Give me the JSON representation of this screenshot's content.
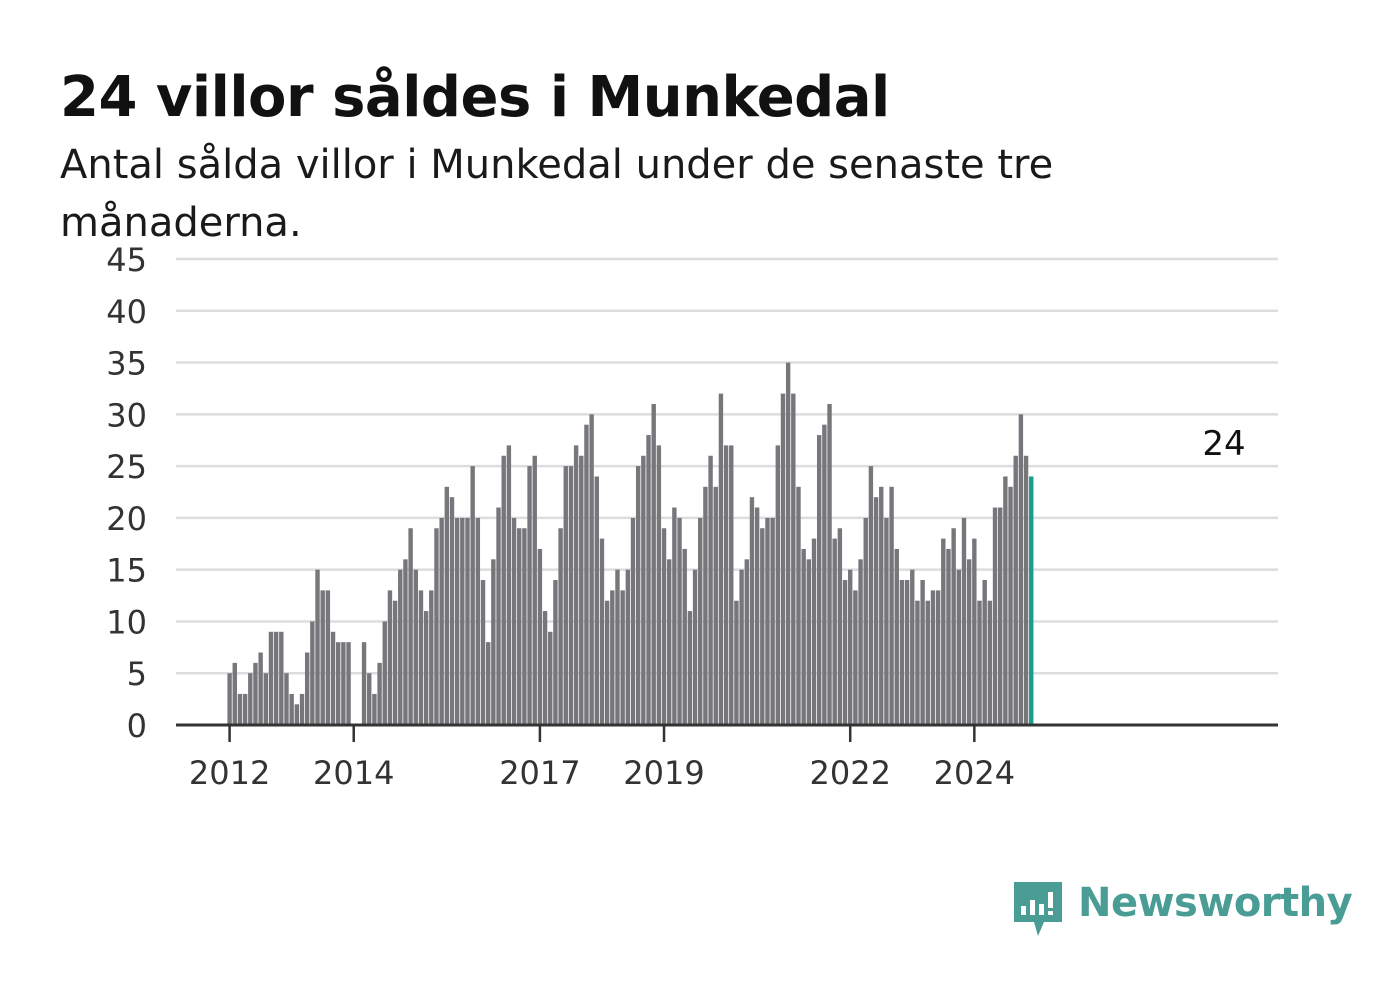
{
  "title": "24 villor såldes i Munkedal",
  "subtitle": "Antal sålda villor i Munkedal under de senaste tre månaderna.",
  "brand": "Newsworthy",
  "colors": {
    "bar": "#77767b",
    "highlight": "#1a9c8f",
    "grid": "#dddddd",
    "axis": "#333333",
    "brand": "#4a9d95"
  },
  "chart_data": {
    "type": "bar",
    "ylim": [
      0,
      45
    ],
    "yticks": [
      0,
      5,
      10,
      15,
      20,
      25,
      30,
      35,
      40,
      45
    ],
    "xtick_labels": [
      "2012",
      "2014",
      "2017",
      "2019",
      "2022",
      "2024"
    ],
    "grid": true,
    "start": "2011-03",
    "annotation": "24",
    "values": [
      null,
      null,
      null,
      null,
      null,
      null,
      null,
      null,
      null,
      null,
      5,
      6,
      3,
      3,
      5,
      6,
      7,
      5,
      9,
      9,
      9,
      5,
      3,
      2,
      3,
      7,
      10,
      15,
      13,
      13,
      9,
      8,
      8,
      8,
      null,
      null,
      8,
      5,
      3,
      6,
      10,
      13,
      12,
      15,
      16,
      19,
      15,
      13,
      11,
      13,
      19,
      20,
      23,
      22,
      20,
      20,
      20,
      25,
      20,
      14,
      8,
      16,
      21,
      26,
      27,
      20,
      19,
      19,
      25,
      26,
      17,
      11,
      9,
      14,
      19,
      25,
      25,
      27,
      26,
      29,
      30,
      24,
      18,
      12,
      13,
      15,
      13,
      15,
      20,
      25,
      26,
      28,
      31,
      27,
      19,
      16,
      21,
      20,
      17,
      11,
      15,
      20,
      23,
      26,
      23,
      32,
      27,
      27,
      12,
      15,
      16,
      22,
      21,
      19,
      20,
      20,
      27,
      32,
      35,
      32,
      23,
      17,
      16,
      18,
      28,
      29,
      31,
      18,
      19,
      14,
      15,
      13,
      16,
      20,
      25,
      22,
      23,
      20,
      23,
      17,
      14,
      14,
      15,
      12,
      14,
      12,
      13,
      13,
      18,
      17,
      19,
      15,
      20,
      16,
      18,
      12,
      14,
      12,
      21,
      21,
      24,
      23,
      26,
      30,
      26,
      24
    ]
  }
}
